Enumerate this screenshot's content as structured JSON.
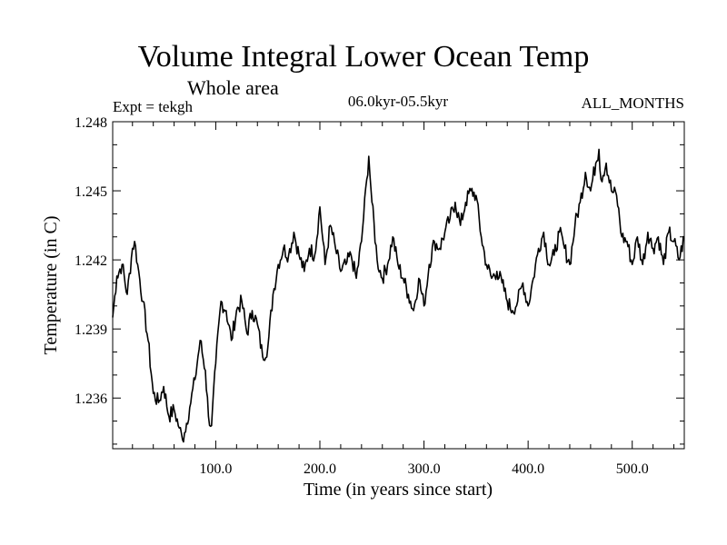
{
  "chart_data": {
    "type": "line",
    "title": "Volume Integral Lower Ocean Temp",
    "subtitle": "Whole area",
    "left_label": "Expt = tekgh",
    "center_label": "06.0kyr-05.5kyr",
    "right_label": "ALL_MONTHS",
    "xlabel": "Time (in years since start)",
    "ylabel": "Temperature (in C)",
    "xlim": [
      1,
      550
    ],
    "ylim": [
      1.2338,
      1.248
    ],
    "x_ticks": [
      100,
      200,
      300,
      400,
      500
    ],
    "x_tick_labels": [
      "100.0",
      "200.0",
      "300.0",
      "400.0",
      "500.0"
    ],
    "y_ticks": [
      1.236,
      1.239,
      1.242,
      1.245,
      1.248
    ],
    "y_tick_labels": [
      "1.236",
      "1.239",
      "1.242",
      "1.245",
      "1.248"
    ],
    "series": [
      {
        "name": "tekgh",
        "color": "#000000",
        "x": [
          1,
          5,
          10,
          15,
          20,
          22,
          25,
          30,
          35,
          40,
          45,
          50,
          55,
          60,
          65,
          68,
          70,
          75,
          80,
          85,
          90,
          93,
          96,
          100,
          105,
          110,
          115,
          120,
          125,
          130,
          135,
          140,
          145,
          150,
          155,
          160,
          165,
          170,
          175,
          180,
          185,
          190,
          195,
          200,
          205,
          210,
          215,
          220,
          225,
          230,
          235,
          240,
          245,
          247,
          250,
          255,
          260,
          265,
          270,
          275,
          280,
          285,
          290,
          295,
          300,
          305,
          310,
          315,
          320,
          325,
          330,
          335,
          340,
          345,
          350,
          355,
          360,
          365,
          370,
          375,
          380,
          385,
          390,
          395,
          400,
          405,
          410,
          415,
          420,
          425,
          430,
          435,
          440,
          445,
          450,
          455,
          460,
          465,
          468,
          470,
          475,
          480,
          485,
          490,
          495,
          500,
          505,
          510,
          515,
          520,
          525,
          530,
          535,
          540,
          545,
          550
        ],
        "values": [
          1.2395,
          1.2413,
          1.2418,
          1.2405,
          1.2425,
          1.2428,
          1.2418,
          1.2402,
          1.2385,
          1.2362,
          1.2358,
          1.2365,
          1.2352,
          1.2355,
          1.2347,
          1.2342,
          1.2345,
          1.2356,
          1.2368,
          1.2385,
          1.2372,
          1.2352,
          1.2348,
          1.2375,
          1.2402,
          1.2398,
          1.2385,
          1.2398,
          1.2402,
          1.2388,
          1.2398,
          1.2392,
          1.2378,
          1.2382,
          1.2405,
          1.2418,
          1.2425,
          1.2422,
          1.2432,
          1.2422,
          1.2415,
          1.2425,
          1.2422,
          1.2443,
          1.2418,
          1.2435,
          1.2425,
          1.2415,
          1.2418,
          1.2422,
          1.2412,
          1.2428,
          1.2455,
          1.2465,
          1.2445,
          1.242,
          1.2412,
          1.2418,
          1.243,
          1.2418,
          1.2412,
          1.2405,
          1.2398,
          1.2412,
          1.24,
          1.2418,
          1.2428,
          1.2425,
          1.2432,
          1.2438,
          1.2445,
          1.2435,
          1.2445,
          1.245,
          1.2448,
          1.243,
          1.2418,
          1.2412,
          1.2415,
          1.241,
          1.2402,
          1.2398,
          1.2402,
          1.241,
          1.24,
          1.2412,
          1.2425,
          1.2432,
          1.2418,
          1.2422,
          1.2432,
          1.2425,
          1.2418,
          1.2435,
          1.2445,
          1.2458,
          1.245,
          1.2462,
          1.2468,
          1.2455,
          1.2462,
          1.245,
          1.2448,
          1.243,
          1.2428,
          1.2418,
          1.243,
          1.2418,
          1.2432,
          1.2425,
          1.243,
          1.2418,
          1.2432,
          1.2428,
          1.242,
          1.243
        ]
      }
    ]
  }
}
